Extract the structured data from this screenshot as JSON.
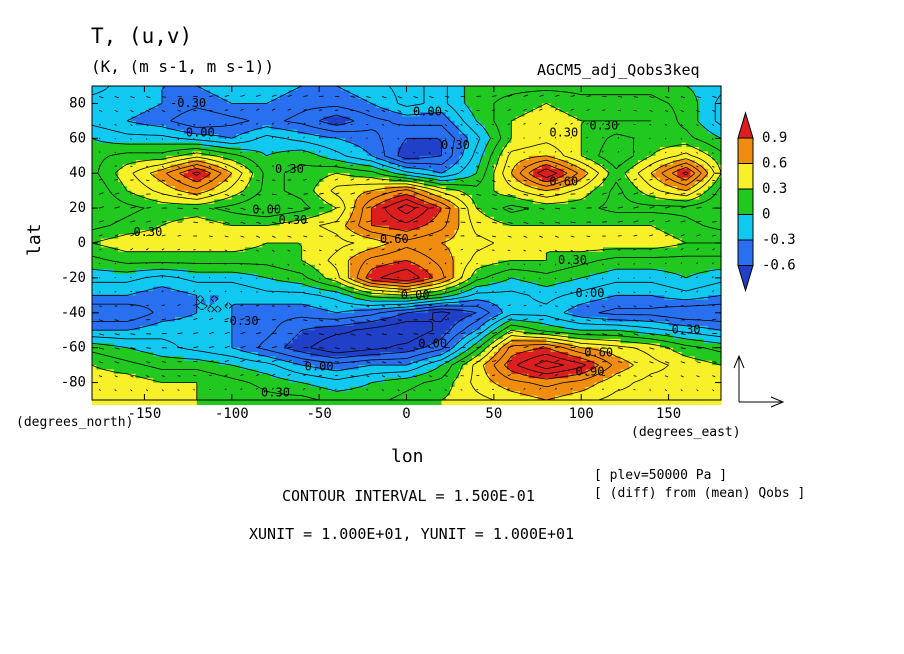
{
  "title": "T, (u,v)",
  "subtitle": "(K, (m s-1, m s-1))",
  "experiment": "AGCM5_adj_Qobs3keq",
  "chart_data": {
    "type": "heatmap",
    "title": "T, (u,v)",
    "xlabel": "lon",
    "ylabel": "lat",
    "x_unit_label": "(degrees_east)",
    "y_unit_label": "(degrees_north)",
    "xlim": [
      -180,
      180
    ],
    "ylim": [
      -90,
      90
    ],
    "x_ticks": [
      -150,
      -100,
      -50,
      0,
      50,
      100,
      150
    ],
    "y_ticks": [
      -80,
      -60,
      -40,
      -20,
      0,
      20,
      40,
      60,
      80
    ],
    "colorbar": {
      "levels": [
        "0.9",
        "0.6",
        "0.3",
        "0",
        "-0.3",
        "-0.6"
      ],
      "colors": [
        "#dd1e1e",
        "#f08c10",
        "#f8f028",
        "#20c820",
        "#10c8f0",
        "#2870f0",
        "#2040c8"
      ]
    },
    "contour_labels": [
      {
        "text": "-0.30",
        "lon": -125,
        "lat": 80
      },
      {
        "text": "0.00",
        "lon": -118,
        "lat": 63
      },
      {
        "text": "0.30",
        "lon": -67,
        "lat": 42
      },
      {
        "text": "0.00",
        "lon": -80,
        "lat": 19
      },
      {
        "text": "0.30",
        "lon": -65,
        "lat": 13
      },
      {
        "text": "0.30",
        "lon": -148,
        "lat": 6
      },
      {
        "text": "0.00",
        "lon": 12,
        "lat": 75
      },
      {
        "text": "0.30",
        "lon": 28,
        "lat": 56
      },
      {
        "text": "0.30",
        "lon": 90,
        "lat": 63
      },
      {
        "text": "0.30",
        "lon": 113,
        "lat": 67
      },
      {
        "text": "0.60",
        "lon": 90,
        "lat": 35
      },
      {
        "text": "0.60",
        "lon": -7,
        "lat": 2
      },
      {
        "text": "0.30",
        "lon": 95,
        "lat": -10
      },
      {
        "text": "0.00",
        "lon": 105,
        "lat": -29
      },
      {
        "text": "-0.30",
        "lon": -95,
        "lat": -45
      },
      {
        "text": "0.00",
        "lon": -50,
        "lat": -71
      },
      {
        "text": "0.30",
        "lon": -75,
        "lat": -86
      },
      {
        "text": "0.00",
        "lon": 15,
        "lat": -58
      },
      {
        "text": "0.60",
        "lon": 110,
        "lat": -63
      },
      {
        "text": "0.90",
        "lon": 105,
        "lat": -74
      },
      {
        "text": "0.30",
        "lon": 160,
        "lat": -50
      },
      {
        "text": "0.00",
        "lon": 5,
        "lat": -30
      }
    ],
    "field": {
      "lon": [
        -180,
        -160,
        -140,
        -120,
        -100,
        -80,
        -60,
        -40,
        -20,
        0,
        20,
        40,
        60,
        80,
        100,
        120,
        140,
        160,
        180
      ],
      "lat": [
        90,
        80,
        70,
        60,
        50,
        40,
        30,
        20,
        10,
        0,
        -10,
        -20,
        -30,
        -40,
        -50,
        -60,
        -70,
        -80,
        -90
      ],
      "values": [
        [
          -0.1,
          -0.2,
          -0.3,
          -0.3,
          -0.2,
          -0.2,
          -0.3,
          -0.3,
          -0.2,
          -0.1,
          -0.2,
          0.1,
          0.1,
          0.1,
          0.1,
          0.1,
          0.1,
          0.0,
          -0.1
        ],
        [
          -0.2,
          -0.2,
          -0.3,
          -0.4,
          -0.3,
          -0.3,
          -0.4,
          -0.4,
          -0.3,
          -0.1,
          -0.2,
          0.1,
          0.2,
          0.3,
          0.2,
          0.2,
          0.2,
          0.1,
          -0.2
        ],
        [
          -0.2,
          -0.3,
          -0.4,
          -0.6,
          -0.5,
          -0.4,
          -0.5,
          -0.7,
          -0.5,
          -0.4,
          -0.4,
          0.0,
          0.3,
          0.4,
          0.3,
          0.3,
          0.3,
          0.1,
          -0.2
        ],
        [
          0.0,
          -0.1,
          -0.1,
          -0.2,
          -0.3,
          -0.1,
          -0.2,
          -0.3,
          -0.4,
          -0.6,
          -0.6,
          -0.2,
          0.3,
          0.4,
          0.3,
          0.1,
          0.2,
          0.2,
          0.0
        ],
        [
          0.1,
          0.2,
          0.2,
          0.4,
          0.2,
          0.0,
          0.1,
          -0.1,
          -0.3,
          -0.7,
          -0.6,
          -0.1,
          0.5,
          0.6,
          0.3,
          0.0,
          0.3,
          0.5,
          0.2
        ],
        [
          0.1,
          0.4,
          0.7,
          1.1,
          0.6,
          0.1,
          0.2,
          0.3,
          0.2,
          -0.1,
          -0.3,
          0.0,
          0.6,
          1.2,
          0.7,
          0.2,
          0.6,
          1.1,
          0.3
        ],
        [
          0.0,
          0.3,
          0.5,
          0.7,
          0.4,
          0.1,
          0.2,
          0.5,
          0.6,
          0.8,
          0.4,
          0.2,
          0.4,
          0.6,
          0.4,
          0.1,
          0.4,
          0.6,
          0.1
        ],
        [
          0.0,
          0.1,
          0.2,
          0.2,
          0.1,
          0.0,
          0.1,
          0.3,
          0.9,
          1.3,
          0.9,
          0.3,
          0.1,
          0.2,
          0.2,
          0.1,
          0.1,
          0.1,
          0.0
        ],
        [
          0.1,
          0.2,
          0.3,
          0.4,
          0.3,
          0.3,
          0.4,
          0.5,
          0.9,
          1.0,
          0.8,
          0.4,
          0.3,
          0.3,
          0.3,
          0.3,
          0.3,
          0.2,
          0.1
        ],
        [
          0.3,
          0.4,
          0.4,
          0.4,
          0.4,
          0.3,
          0.3,
          0.4,
          0.5,
          0.7,
          0.6,
          0.5,
          0.4,
          0.3,
          0.4,
          0.4,
          0.4,
          0.3,
          0.3
        ],
        [
          0.1,
          0.2,
          0.2,
          0.2,
          0.2,
          0.2,
          0.3,
          0.5,
          0.8,
          0.9,
          0.7,
          0.4,
          0.3,
          0.3,
          0.2,
          0.1,
          0.1,
          0.1,
          0.1
        ],
        [
          -0.1,
          -0.1,
          -0.2,
          -0.1,
          -0.1,
          0.0,
          0.1,
          0.4,
          1.0,
          1.2,
          0.8,
          0.2,
          0.0,
          0.1,
          0.0,
          -0.1,
          -0.1,
          0.0,
          -0.1
        ],
        [
          -0.3,
          -0.3,
          -0.4,
          -0.3,
          -0.3,
          -0.2,
          -0.2,
          -0.1,
          0.2,
          0.3,
          0.1,
          -0.2,
          -0.2,
          -0.1,
          -0.2,
          -0.3,
          -0.3,
          -0.2,
          -0.3
        ],
        [
          -0.6,
          -0.6,
          -0.4,
          -0.3,
          -0.3,
          -0.4,
          -0.4,
          -0.3,
          -0.4,
          -0.6,
          -0.8,
          -0.6,
          -0.2,
          -0.2,
          -0.4,
          -0.5,
          -0.5,
          -0.6,
          -0.6
        ],
        [
          -0.3,
          -0.3,
          -0.2,
          -0.2,
          -0.3,
          -0.4,
          -0.6,
          -0.7,
          -0.8,
          -0.9,
          -0.7,
          -0.3,
          0.3,
          0.1,
          0.0,
          0.0,
          -0.1,
          -0.2,
          -0.3
        ],
        [
          0.1,
          0.0,
          -0.1,
          -0.2,
          -0.3,
          -0.5,
          -0.7,
          -0.9,
          -0.8,
          -0.7,
          -0.5,
          0.1,
          0.8,
          0.9,
          0.6,
          0.5,
          0.4,
          0.2,
          0.1
        ],
        [
          0.3,
          0.2,
          0.1,
          0.1,
          0.0,
          -0.1,
          -0.3,
          -0.4,
          -0.3,
          -0.3,
          0.0,
          0.5,
          1.0,
          1.3,
          1.1,
          0.7,
          0.5,
          0.4,
          0.3
        ],
        [
          0.4,
          0.4,
          0.3,
          0.3,
          0.2,
          0.1,
          0.0,
          -0.1,
          0.0,
          0.1,
          0.2,
          0.5,
          0.7,
          0.8,
          0.7,
          0.5,
          0.4,
          0.4,
          0.4
        ],
        [
          0.4,
          0.4,
          0.4,
          0.3,
          0.3,
          0.2,
          0.2,
          0.1,
          0.1,
          0.2,
          0.3,
          0.4,
          0.5,
          0.6,
          0.5,
          0.4,
          0.4,
          0.4,
          0.4
        ]
      ]
    }
  },
  "footer": {
    "contour_interval": "CONTOUR INTERVAL = 1.500E-01",
    "units": "XUNIT = 1.000E+01, YUNIT = 1.000E+01",
    "plev": "[ plev=50000 Pa ]",
    "diff": "[ (diff) from (mean) Qobs ]"
  }
}
